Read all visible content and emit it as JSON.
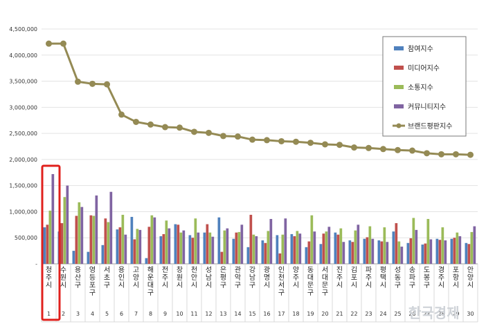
{
  "chart_data": {
    "type": "bar",
    "categories": [
      "청주시",
      "수원시",
      "용산구",
      "영등포구",
      "서초구",
      "용인시",
      "고양시",
      "해운대구",
      "전주시",
      "창원시",
      "천안시",
      "성남시",
      "은평구",
      "관악구",
      "강남구",
      "광명시",
      "인천서구",
      "양주시",
      "동대문구",
      "서대문구",
      "진주시",
      "김포시",
      "파주시",
      "평택시",
      "성동구",
      "송파구",
      "도봉구",
      "경주시",
      "포항시",
      "안양시"
    ],
    "ranks": [
      "1",
      "2",
      "3",
      "4",
      "5",
      "6",
      "7",
      "8",
      "9",
      "10",
      "11",
      "12",
      "13",
      "14",
      "15",
      "16",
      "17",
      "18",
      "19",
      "20",
      "21",
      "22",
      "23",
      "24",
      "25",
      "26",
      "27",
      "28",
      "29",
      "30"
    ],
    "ylim": [
      0,
      4500000
    ],
    "yticks": [
      "-",
      "500,000",
      "1,000,000",
      "1,500,000",
      "2,000,000",
      "2,500,000",
      "3,000,000",
      "3,500,000",
      "4,000,000",
      "4,500,000"
    ],
    "series": [
      {
        "name": "참여지수",
        "color": "#4f81bd",
        "values": [
          700000,
          620000,
          250000,
          230000,
          360000,
          660000,
          900000,
          110000,
          530000,
          760000,
          550000,
          600000,
          890000,
          480000,
          320000,
          450000,
          550000,
          570000,
          320000,
          380000,
          600000,
          450000,
          480000,
          450000,
          620000,
          400000,
          370000,
          480000,
          480000,
          400000
        ]
      },
      {
        "name": "미디어지수",
        "color": "#c0504d",
        "values": [
          750000,
          780000,
          920000,
          930000,
          870000,
          700000,
          470000,
          710000,
          570000,
          750000,
          500000,
          760000,
          230000,
          600000,
          940000,
          400000,
          200000,
          530000,
          430000,
          580000,
          560000,
          420000,
          510000,
          430000,
          780000,
          490000,
          390000,
          460000,
          500000,
          380000
        ]
      },
      {
        "name": "소통지수",
        "color": "#9bbb59",
        "values": [
          1020000,
          1280000,
          1180000,
          920000,
          800000,
          940000,
          670000,
          930000,
          830000,
          600000,
          870000,
          600000,
          640000,
          610000,
          560000,
          630000,
          560000,
          630000,
          930000,
          620000,
          680000,
          640000,
          720000,
          700000,
          430000,
          880000,
          860000,
          700000,
          600000,
          610000
        ]
      },
      {
        "name": "커뮤니티지수",
        "color": "#8064a2",
        "values": [
          1720000,
          1500000,
          1090000,
          1310000,
          1380000,
          560000,
          650000,
          890000,
          680000,
          640000,
          600000,
          520000,
          680000,
          750000,
          530000,
          860000,
          870000,
          580000,
          620000,
          710000,
          420000,
          750000,
          480000,
          420000,
          330000,
          650000,
          470000,
          450000,
          530000,
          720000
        ]
      },
      {
        "name": "브랜드평판지수",
        "color": "#948a54",
        "type": "line",
        "values": [
          4220000,
          4220000,
          3490000,
          3450000,
          3440000,
          2860000,
          2720000,
          2670000,
          2620000,
          2610000,
          2530000,
          2510000,
          2450000,
          2440000,
          2380000,
          2370000,
          2350000,
          2340000,
          2320000,
          2290000,
          2280000,
          2230000,
          2220000,
          2200000,
          2180000,
          2170000,
          2120000,
          2100000,
          2100000,
          2090000
        ]
      }
    ],
    "legend_position": "top-right",
    "highlight_index": 0
  },
  "watermark": "한국경제"
}
